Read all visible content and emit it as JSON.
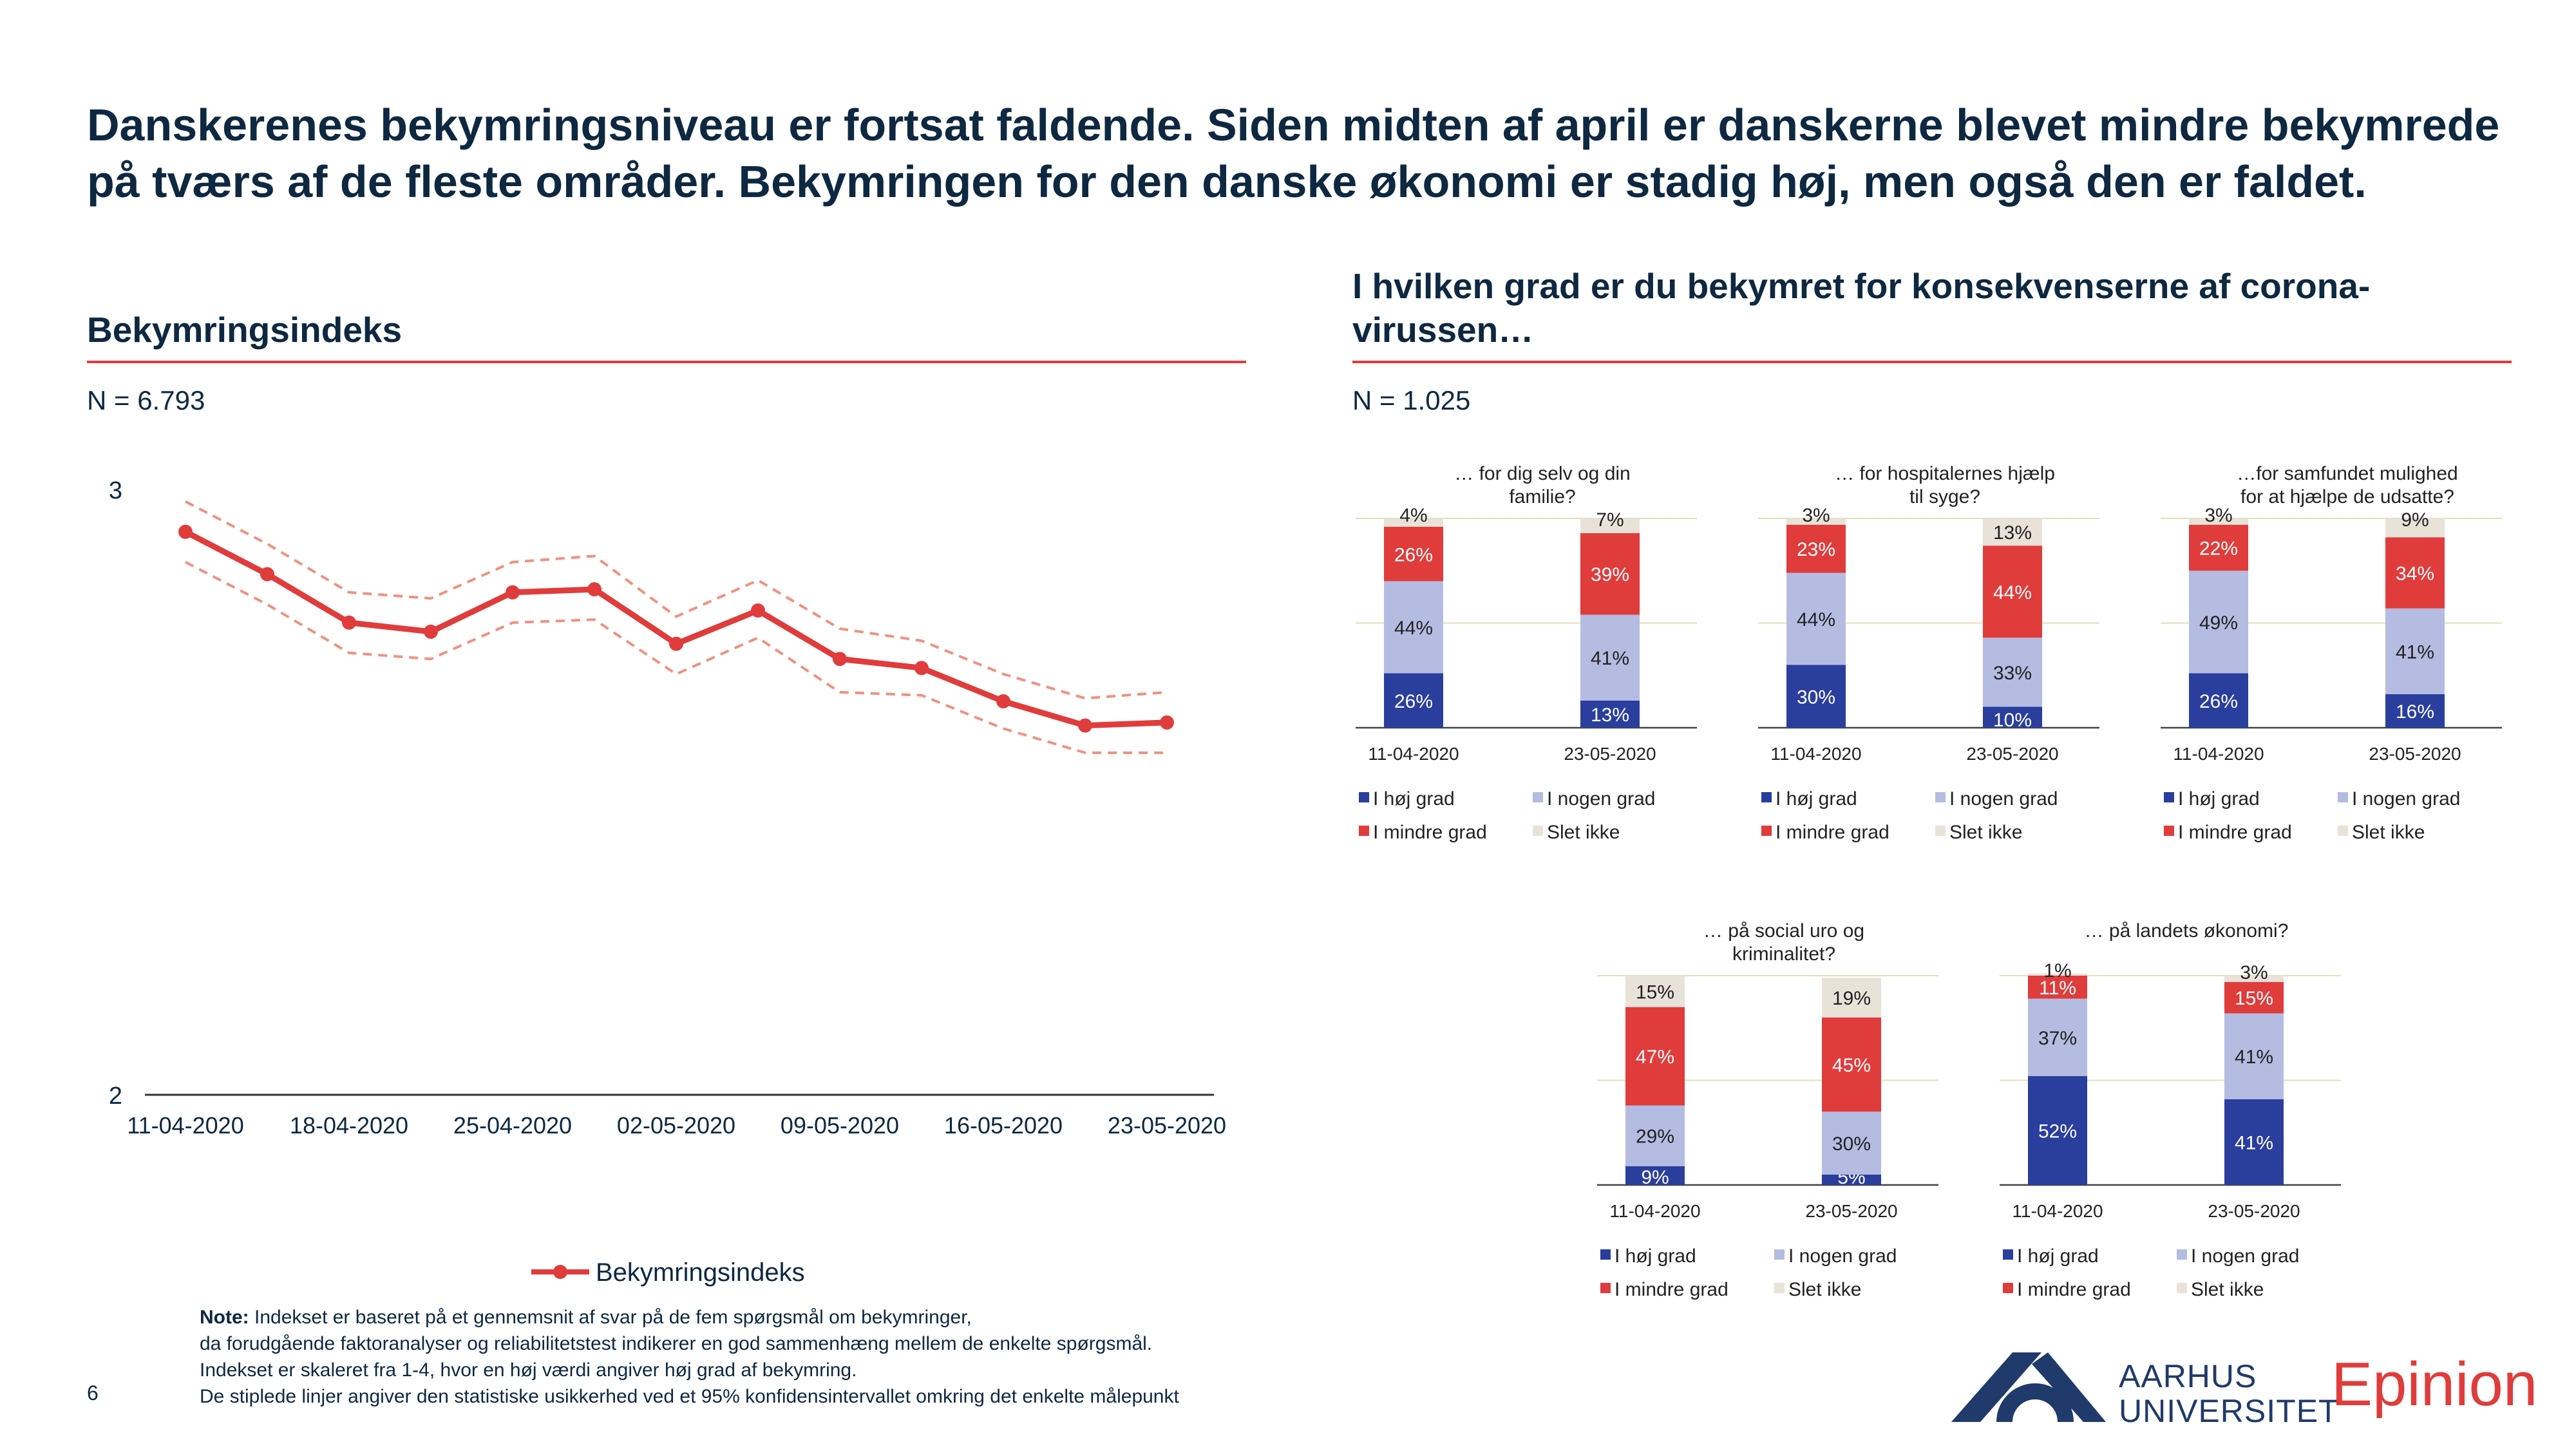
{
  "headline": "Danskerenes bekymringsniveau er fortsat faldende. Siden midten af april er danskerne blevet mindre bekymrede på tværs af de fleste områder. Bekymringen for den danske økonomi er stadig høj, men også den er faldet.",
  "left_section": {
    "title": "Bekymringsindeks",
    "n_label": "N = 6.793"
  },
  "right_section": {
    "title_line1": "I hvilken grad er du bekymret for konsekvenserne af corona-",
    "title_line2": "virussen…",
    "n_label": "N = 1.025"
  },
  "colors": {
    "hoj": "#2a3e9e",
    "nogen": "#b4bce2",
    "mindre": "#e03c3c",
    "slet": "#e8e2d8",
    "accent": "#e03c3c",
    "navy": "#0e2841"
  },
  "legend_labels": {
    "hoj": "I høj grad",
    "nogen": "I nogen grad",
    "mindre": "I mindre grad",
    "slet": "Slet ikke"
  },
  "chart_data": [
    {
      "type": "line",
      "title": "Bekymringsindeks",
      "x": [
        "11-04-2020",
        "14-04-2020",
        "18-04-2020",
        "21-04-2020",
        "25-04-2020",
        "29-04-2020",
        "02-05-2020",
        "06-05-2020",
        "09-05-2020",
        "13-05-2020",
        "16-05-2020",
        "20-05-2020",
        "23-05-2020"
      ],
      "xticks": [
        "11-04-2020",
        "18-04-2020",
        "25-04-2020",
        "02-05-2020",
        "09-05-2020",
        "16-05-2020",
        "23-05-2020"
      ],
      "series": [
        {
          "name": "Bekymringsindeks",
          "values": [
            2.93,
            2.86,
            2.78,
            2.765,
            2.83,
            2.835,
            2.745,
            2.8,
            2.72,
            2.705,
            2.65,
            2.61,
            2.615
          ]
        }
      ],
      "lower": [
        2.88,
        2.81,
        2.73,
        2.72,
        2.78,
        2.785,
        2.695,
        2.755,
        2.665,
        2.66,
        2.605,
        2.565,
        2.565
      ],
      "upper": [
        2.98,
        2.91,
        2.83,
        2.82,
        2.88,
        2.89,
        2.79,
        2.85,
        2.77,
        2.75,
        2.695,
        2.655,
        2.665
      ],
      "ylim": [
        2,
        3
      ],
      "yticks": [
        2,
        3
      ],
      "legend": "bottom"
    },
    {
      "type": "bar",
      "stacked": true,
      "title": "… for dig selv og din familie?",
      "title_lines": [
        "… for dig selv og din",
        "familie?"
      ],
      "categories": [
        "11-04-2020",
        "23-05-2020"
      ],
      "series": [
        {
          "key": "hoj",
          "values": [
            26,
            13
          ]
        },
        {
          "key": "nogen",
          "values": [
            44,
            41
          ]
        },
        {
          "key": "mindre",
          "values": [
            26,
            39
          ]
        },
        {
          "key": "slet",
          "values": [
            4,
            7
          ]
        }
      ],
      "labels": {
        "hoj": [
          "26%",
          "13%"
        ],
        "nogen": [
          "44%",
          "41%"
        ],
        "mindre": [
          "26%",
          "39%"
        ],
        "slet": [
          "4%",
          "7%"
        ]
      }
    },
    {
      "type": "bar",
      "stacked": true,
      "title": "… for hospitalernes hjælp til syge?",
      "title_lines": [
        "… for hospitalernes hjælp",
        "til syge?"
      ],
      "categories": [
        "11-04-2020",
        "23-05-2020"
      ],
      "series": [
        {
          "key": "hoj",
          "values": [
            30,
            10
          ]
        },
        {
          "key": "nogen",
          "values": [
            44,
            33
          ]
        },
        {
          "key": "mindre",
          "values": [
            23,
            44
          ]
        },
        {
          "key": "slet",
          "values": [
            3,
            13
          ]
        }
      ],
      "labels": {
        "hoj": [
          "30%",
          "10%"
        ],
        "nogen": [
          "44%",
          "33%"
        ],
        "mindre": [
          "23%",
          "44%"
        ],
        "slet": [
          "3%",
          "13%"
        ]
      }
    },
    {
      "type": "bar",
      "stacked": true,
      "title": "…for samfundet mulighed for at hjælpe de udsatte?",
      "title_lines": [
        "…for samfundet mulighed",
        "for at hjælpe de udsatte?"
      ],
      "categories": [
        "11-04-2020",
        "23-05-2020"
      ],
      "series": [
        {
          "key": "hoj",
          "values": [
            26,
            16
          ]
        },
        {
          "key": "nogen",
          "values": [
            49,
            41
          ]
        },
        {
          "key": "mindre",
          "values": [
            22,
            34
          ]
        },
        {
          "key": "slet",
          "values": [
            3,
            9
          ]
        }
      ],
      "labels": {
        "hoj": [
          "26%",
          "16%"
        ],
        "nogen": [
          "49%",
          "41%"
        ],
        "mindre": [
          "22%",
          "34%"
        ],
        "slet": [
          "3%",
          "9%"
        ]
      }
    },
    {
      "type": "bar",
      "stacked": true,
      "title": "… på social uro og kriminalitet?",
      "title_lines": [
        "… på social uro og",
        "kriminalitet?"
      ],
      "categories": [
        "11-04-2020",
        "23-05-2020"
      ],
      "series": [
        {
          "key": "hoj",
          "values": [
            9,
            5
          ]
        },
        {
          "key": "nogen",
          "values": [
            29,
            30
          ]
        },
        {
          "key": "mindre",
          "values": [
            47,
            45
          ]
        },
        {
          "key": "slet",
          "values": [
            15,
            19
          ]
        }
      ],
      "labels": {
        "hoj": [
          "9%",
          "5%"
        ],
        "nogen": [
          "29%",
          "30%"
        ],
        "mindre": [
          "47%",
          "45%"
        ],
        "slet": [
          "15%",
          "19%"
        ]
      }
    },
    {
      "type": "bar",
      "stacked": true,
      "title": "… på landets økonomi?",
      "title_lines": [
        "… på landets økonomi?"
      ],
      "categories": [
        "11-04-2020",
        "23-05-2020"
      ],
      "series": [
        {
          "key": "hoj",
          "values": [
            52,
            41
          ]
        },
        {
          "key": "nogen",
          "values": [
            37,
            41
          ]
        },
        {
          "key": "mindre",
          "values": [
            11,
            15
          ]
        },
        {
          "key": "slet",
          "values": [
            1,
            3
          ]
        }
      ],
      "labels": {
        "hoj": [
          "52%",
          "41%"
        ],
        "nogen": [
          "37%",
          "41%"
        ],
        "mindre": [
          "11%",
          "15%"
        ],
        "slet": [
          "1%",
          "3%"
        ]
      }
    }
  ],
  "note": {
    "label": "Note:",
    "line1": " Indekset er baseret på et gennemsnit af svar på de fem spørgsmål om bekymringer,",
    "line2": "da forudgående faktoranalyser og reliabilitetstest indikerer en god sammenhæng mellem de enkelte spørgsmål.",
    "line3": "Indekset er skaleret fra 1-4, hvor en høj værdi angiver høj grad af bekymring.",
    "line4": "De stiplede linjer angiver den statistiske usikkerhed ved et 95% konfidensintervallet omkring det enkelte målepunkt"
  },
  "page_number": "6",
  "logos": {
    "au_line1": "AARHUS",
    "au_line2": "UNIVERSITET",
    "epinion": "Epinion"
  }
}
